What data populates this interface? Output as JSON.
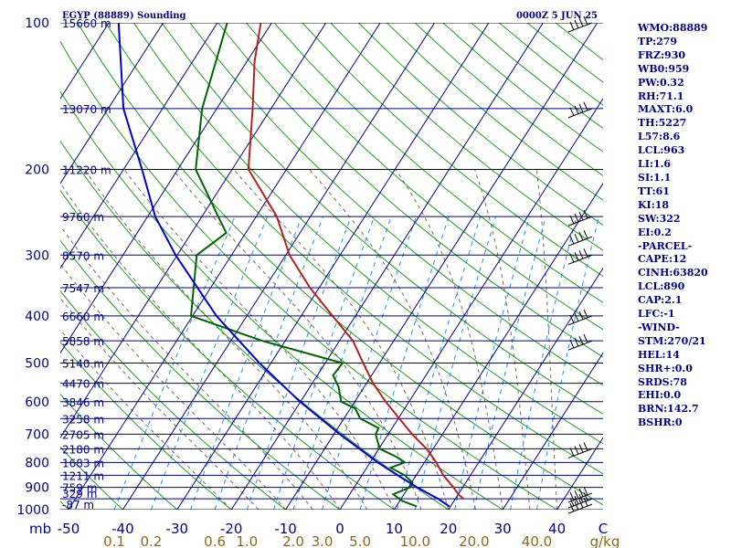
{
  "header": {
    "station": "EGYP (88889) Sounding",
    "time": "0000Z  5 JUN 25"
  },
  "indices": [
    "WMO:88889",
    "TP:279",
    "FRZ:930",
    "WB0:959",
    "PW:0.32",
    "RH:71.1",
    "MAXT:6.0",
    "TH:5227",
    "L57:8.6",
    "LCL:963",
    "LI:1.6",
    "SI:1.1",
    "TT:61",
    "KI:18",
    "SW:322",
    "EI:0.2",
    "-PARCEL-",
    "CAPE:12",
    "CINH:63820",
    "LCL:890",
    "CAP:2.1",
    "LFC:-1",
    "-WIND-",
    "STM:270/21",
    "HEL:14",
    "SHR+:0.0",
    "SRDS:78",
    "EHI:0.0",
    "BRN:142.7",
    "BSHR:0"
  ],
  "chart_data": {
    "type": "line",
    "subtype": "skew-T log-p sounding",
    "pressure_axis": {
      "unit": "mb",
      "range": [
        1000,
        100
      ],
      "scale": "log",
      "ticks": [
        100,
        200,
        300,
        400,
        500,
        600,
        700,
        800,
        900,
        1000
      ]
    },
    "temperature_axis": {
      "range": [
        -50,
        50
      ],
      "ticks": [
        -50,
        -40,
        -30,
        -20,
        -10,
        0,
        10,
        20,
        30,
        40
      ],
      "tick_labels": [
        "-50",
        "-40",
        "-30",
        "-20",
        "-10",
        "0",
        "10",
        "20",
        "30",
        "40",
        "C"
      ]
    },
    "mixing_ratio_labels": [
      {
        "label": "0.1",
        "value": 0.1
      },
      {
        "label": "0.2",
        "value": 0.2
      },
      {
        "label": "0.6",
        "value": 0.6
      },
      {
        "label": "1.0",
        "value": 1.0
      },
      {
        "label": "2.0",
        "value": 2.0
      },
      {
        "label": "3.0",
        "value": 3.0
      },
      {
        "label": "5.0",
        "value": 5.0
      },
      {
        "label": "10.0",
        "value": 10.0
      },
      {
        "label": "20.0",
        "value": 20.0
      },
      {
        "label": "40.0",
        "value": 40.0
      },
      {
        "label": "g/kg",
        "value": null
      }
    ],
    "height_labels": [
      {
        "p": 100,
        "label": "15660 m"
      },
      {
        "p": 150,
        "label": "13070 m"
      },
      {
        "p": 200,
        "label": "11220 m"
      },
      {
        "p": 250,
        "label": "9760 m"
      },
      {
        "p": 300,
        "label": "8570 m"
      },
      {
        "p": 350,
        "label": "7547 m"
      },
      {
        "p": 400,
        "label": "6660 m"
      },
      {
        "p": 450,
        "label": "5858 m"
      },
      {
        "p": 500,
        "label": "5140 m"
      },
      {
        "p": 550,
        "label": "4470 m"
      },
      {
        "p": 600,
        "label": "3846 m"
      },
      {
        "p": 650,
        "label": "3258 m"
      },
      {
        "p": 700,
        "label": "2705 m"
      },
      {
        "p": 750,
        "label": "2180 m"
      },
      {
        "p": 800,
        "label": "1683 m"
      },
      {
        "p": 850,
        "label": "1211 m"
      },
      {
        "p": 900,
        "label": "759 m"
      },
      {
        "p": 925,
        "label": "329 m"
      },
      {
        "p": 975,
        "label": "-87 m"
      }
    ],
    "series": [
      {
        "key": "temperature",
        "color": "#b22222",
        "points": [
          {
            "p": 950,
            "t": 21.5
          },
          {
            "p": 930,
            "t": 20
          },
          {
            "p": 900,
            "t": 18.3
          },
          {
            "p": 850,
            "t": 15
          },
          {
            "p": 800,
            "t": 12.2
          },
          {
            "p": 750,
            "t": 8.8
          },
          {
            "p": 700,
            "t": 4.4
          },
          {
            "p": 650,
            "t": 0.2
          },
          {
            "p": 600,
            "t": -4.3
          },
          {
            "p": 550,
            "t": -8.8
          },
          {
            "p": 500,
            "t": -13
          },
          {
            "p": 450,
            "t": -17.5
          },
          {
            "p": 400,
            "t": -24.2
          },
          {
            "p": 350,
            "t": -31.7
          },
          {
            "p": 300,
            "t": -39.3
          },
          {
            "p": 250,
            "t": -46.2
          },
          {
            "p": 200,
            "t": -57
          },
          {
            "p": 150,
            "t": -63.4
          },
          {
            "p": 120,
            "t": -68.6
          },
          {
            "p": 100,
            "t": -72
          }
        ]
      },
      {
        "key": "dewpoint",
        "color": "#006400",
        "points": [
          {
            "p": 985,
            "t": 13.8
          },
          {
            "p": 960,
            "t": 10.5
          },
          {
            "p": 930,
            "t": 8
          },
          {
            "p": 900,
            "t": 10.3
          },
          {
            "p": 880,
            "t": 10.2
          },
          {
            "p": 850,
            "t": 7.9
          },
          {
            "p": 820,
            "t": 4.4
          },
          {
            "p": 800,
            "t": 6.4
          },
          {
            "p": 780,
            "t": 4.3
          },
          {
            "p": 750,
            "t": 0.2
          },
          {
            "p": 720,
            "t": -1.3
          },
          {
            "p": 700,
            "t": -2.3
          },
          {
            "p": 680,
            "t": -2.5
          },
          {
            "p": 650,
            "t": -7
          },
          {
            "p": 620,
            "t": -9.1
          },
          {
            "p": 600,
            "t": -12.5
          },
          {
            "p": 560,
            "t": -14.7
          },
          {
            "p": 530,
            "t": -17.1
          },
          {
            "p": 500,
            "t": -16.8
          },
          {
            "p": 450,
            "t": -34.2
          },
          {
            "p": 400,
            "t": -50.3
          },
          {
            "p": 300,
            "t": -56.4
          },
          {
            "p": 270,
            "t": -53.6
          },
          {
            "p": 250,
            "t": -57
          },
          {
            "p": 200,
            "t": -66.7
          },
          {
            "p": 150,
            "t": -72.7
          },
          {
            "p": 100,
            "t": -78.2
          }
        ]
      },
      {
        "key": "parcel",
        "color": "#0000cd",
        "points": [
          {
            "p": 985,
            "t": 19.8
          },
          {
            "p": 950,
            "t": 16.8
          },
          {
            "p": 900,
            "t": 11.6
          },
          {
            "p": 850,
            "t": 6.6
          },
          {
            "p": 800,
            "t": 1.4
          },
          {
            "p": 700,
            "t": -8.9
          },
          {
            "p": 600,
            "t": -20.1
          },
          {
            "p": 500,
            "t": -32.1
          },
          {
            "p": 400,
            "t": -45.6
          },
          {
            "p": 300,
            "t": -60.3
          },
          {
            "p": 250,
            "t": -68.6
          },
          {
            "p": 200,
            "t": -76.6
          },
          {
            "p": 150,
            "t": -87.2
          },
          {
            "p": 100,
            "t": -98.2
          }
        ]
      }
    ],
    "wind_barbs_p": [
      100,
      150,
      250,
      275,
      300,
      400,
      450,
      750,
      925,
      950,
      975
    ],
    "colors": {
      "isobar": "#00008b",
      "isotherm": "#00008b",
      "dry_adiabat": "#1e9e1e",
      "moist_adiabat": "#7a6a5a",
      "mixing_ratio": "#1e90ff",
      "label": "#00008b",
      "mixing_label": "#8b6914"
    }
  }
}
